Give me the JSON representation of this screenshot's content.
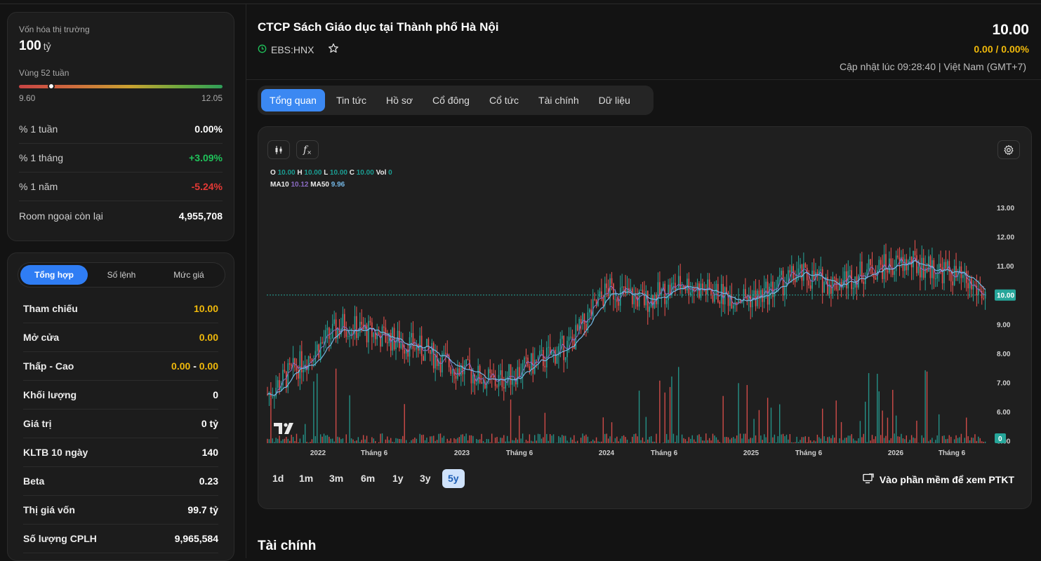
{
  "market": {
    "cap_label": "Vốn hóa thị trường",
    "cap_value": "100",
    "cap_unit": "tỷ",
    "range_label": "Vùng 52 tuần",
    "range_low": "9.60",
    "range_high": "12.05",
    "range_position": 0.16,
    "stats": [
      {
        "label": "% 1 tuần",
        "value": "0.00%",
        "tone": "neutral"
      },
      {
        "label": "% 1 tháng",
        "value": "+3.09%",
        "tone": "up"
      },
      {
        "label": "% 1 năm",
        "value": "-5.24%",
        "tone": "down"
      },
      {
        "label": "Room ngoại còn lại",
        "value": "4,955,708",
        "tone": "neutral"
      }
    ]
  },
  "trade": {
    "tabs": [
      "Tổng hợp",
      "Số lệnh",
      "Mức giá"
    ],
    "rows": [
      {
        "label": "Tham chiếu",
        "value": "10.00"
      },
      {
        "label": "Mở cửa",
        "value": "0.00"
      },
      {
        "label": "Thấp - Cao",
        "low": "0.00",
        "sep": "-",
        "high": "0.00"
      },
      {
        "label": "Khối lượng",
        "value": "0"
      },
      {
        "label": "Giá trị",
        "value": "0 tỷ"
      },
      {
        "label": "KLTB 10 ngày",
        "value": "140"
      },
      {
        "label": "Beta",
        "value": "0.23"
      },
      {
        "label": "Thị giá vốn",
        "value": "99.7 tỷ"
      },
      {
        "label": "Số lượng CPLH",
        "value": "9,965,584"
      }
    ]
  },
  "header": {
    "company": "CTCP Sách Giáo dục tại Thành phố Hà Nội",
    "ticker": "EBS:HNX",
    "price": "10.00",
    "change": "0.00 / 0.00%",
    "updated": "Cập nhật lúc 09:28:40 | Việt Nam (GMT+7)"
  },
  "tabs": [
    "Tổng quan",
    "Tin tức",
    "Hồ sơ",
    "Cổ đông",
    "Cổ tức",
    "Tài chính",
    "Dữ liệu"
  ],
  "chart": {
    "ohlc": {
      "o_label": "O",
      "o": "10.00",
      "h_label": "H",
      "h": "10.00",
      "l_label": "L",
      "l": "10.00",
      "c_label": "C",
      "c": "10.00",
      "vol_label": "Vol",
      "vol": "0"
    },
    "ma": {
      "ma10_label": "MA10",
      "ma10": "10.12",
      "ma50_label": "MA50",
      "ma50": "9.96"
    },
    "fx_icon": "f",
    "y_ticks": [
      "13.00",
      "12.00",
      "11.00",
      "10.00",
      "9.00",
      "8.00",
      "7.00",
      "6.00",
      "5.00"
    ],
    "last_price_tag": "10.00",
    "last_volume_tag": "0",
    "x_ticks": [
      "2022",
      "Tháng 6",
      "2023",
      "Tháng 6",
      "2024",
      "Tháng 6",
      "2025",
      "Tháng 6",
      "2026",
      "Tháng 6"
    ],
    "ranges": [
      "1d",
      "1m",
      "3m",
      "6m",
      "1y",
      "3y",
      "5y"
    ],
    "active_range": "5y",
    "ptkt_label": "Vào phần mềm để xem PTKT"
  },
  "chart_data": {
    "type": "candlestick",
    "title": "",
    "x": [
      "2021-10",
      "2022-01",
      "2022-04",
      "2022-06",
      "2022-09",
      "2023-01",
      "2023-03",
      "2023-06",
      "2023-09",
      "2024-01",
      "2024-04",
      "2024-06",
      "2024-09",
      "2025-01",
      "2025-04",
      "2025-06",
      "2025-09",
      "2026-01",
      "2026-03",
      "2026-06"
    ],
    "close": [
      6.6,
      7.8,
      9.0,
      8.6,
      8.2,
      7.5,
      7.0,
      7.6,
      8.3,
      10.2,
      9.8,
      10.4,
      10.0,
      9.9,
      10.7,
      10.4,
      10.9,
      11.1,
      10.8,
      10.0
    ],
    "ma10_last": 10.12,
    "ma50_last": 9.96,
    "ylim": [
      4.8,
      13.6
    ],
    "colors": {
      "up": "#26a69a",
      "down": "#ef5350",
      "ma10": "#8b6bc4",
      "ma50": "#74b7e5"
    }
  },
  "section": {
    "title": "Tài chính"
  }
}
